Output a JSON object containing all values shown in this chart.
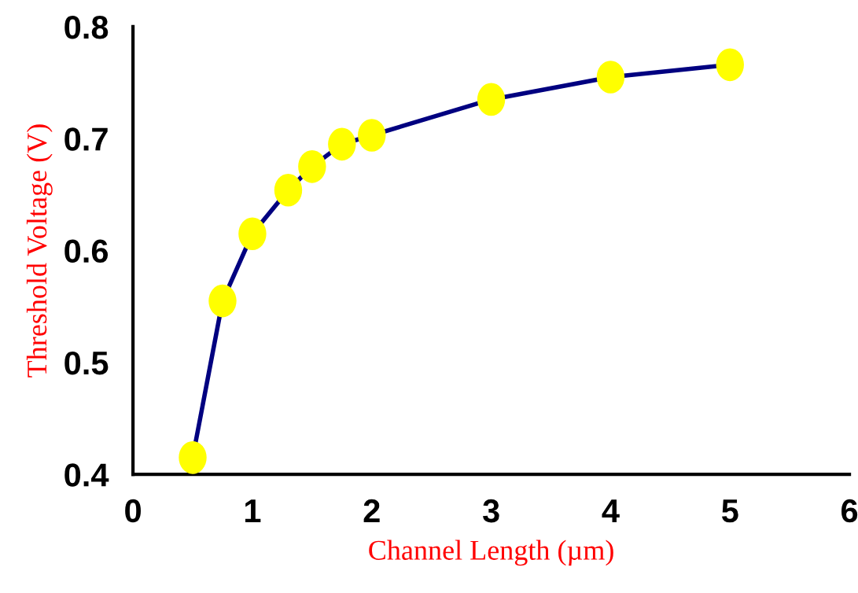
{
  "chart_data": {
    "type": "line",
    "xlabel": "Channel Length (µm)",
    "ylabel": "Threshold Voltage (V)",
    "x": [
      0.5,
      0.75,
      1.0,
      1.3,
      1.5,
      1.75,
      2.0,
      3.0,
      4.0,
      5.0
    ],
    "series": [
      {
        "color": "#000080",
        "colors": [
          "#ffff00",
          "#ffff00",
          "#ffff00",
          "#ffff00",
          "#ffff00",
          "#ffff00",
          "#ffff00",
          "#ffff00",
          "#ffff00",
          "#ffff00"
        ],
        "values": [
          0.415,
          0.555,
          0.615,
          0.654,
          0.675,
          0.695,
          0.703,
          0.735,
          0.755,
          0.766
        ]
      }
    ],
    "xlim": [
      0,
      6
    ],
    "xticks": [
      0,
      1,
      2,
      3,
      4,
      5,
      6
    ],
    "ylim": [
      0.4,
      0.8
    ],
    "yticks": [
      0.4,
      0.5,
      0.6,
      0.7,
      0.8
    ],
    "marker": "circle",
    "line_style": "solid",
    "grid": false,
    "legend": false
  }
}
